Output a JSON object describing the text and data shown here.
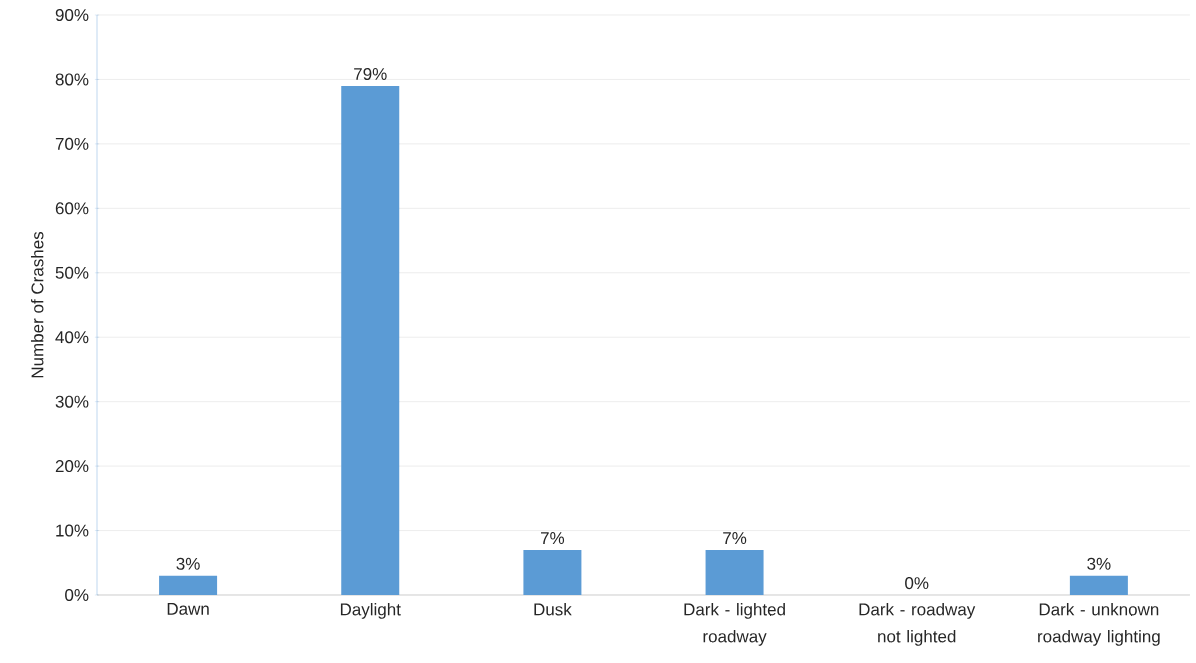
{
  "chart_data": {
    "type": "bar",
    "ylabel": "Number of Crashes",
    "categories": [
      "Dawn",
      "Daylight",
      "Dusk",
      "Dark - lighted roadway",
      "Dark - roadway not lighted",
      "Dark - unknown roadway lighting"
    ],
    "values": [
      3,
      79,
      7,
      7,
      0,
      3
    ],
    "value_labels": [
      "3%",
      "79%",
      "7%",
      "7%",
      "0%",
      "3%"
    ],
    "color": "#5b9bd5",
    "ylim": [
      0,
      90
    ],
    "yticks": [
      {
        "value": 0,
        "label": "0%"
      },
      {
        "value": 10,
        "label": "10%"
      },
      {
        "value": 20,
        "label": "20%"
      },
      {
        "value": 30,
        "label": "30%"
      },
      {
        "value": 40,
        "label": "40%"
      },
      {
        "value": 50,
        "label": "50%"
      },
      {
        "value": 60,
        "label": "60%"
      },
      {
        "value": 70,
        "label": "70%"
      },
      {
        "value": 80,
        "label": "80%"
      },
      {
        "value": 90,
        "label": "90%"
      }
    ],
    "grid": "y"
  }
}
